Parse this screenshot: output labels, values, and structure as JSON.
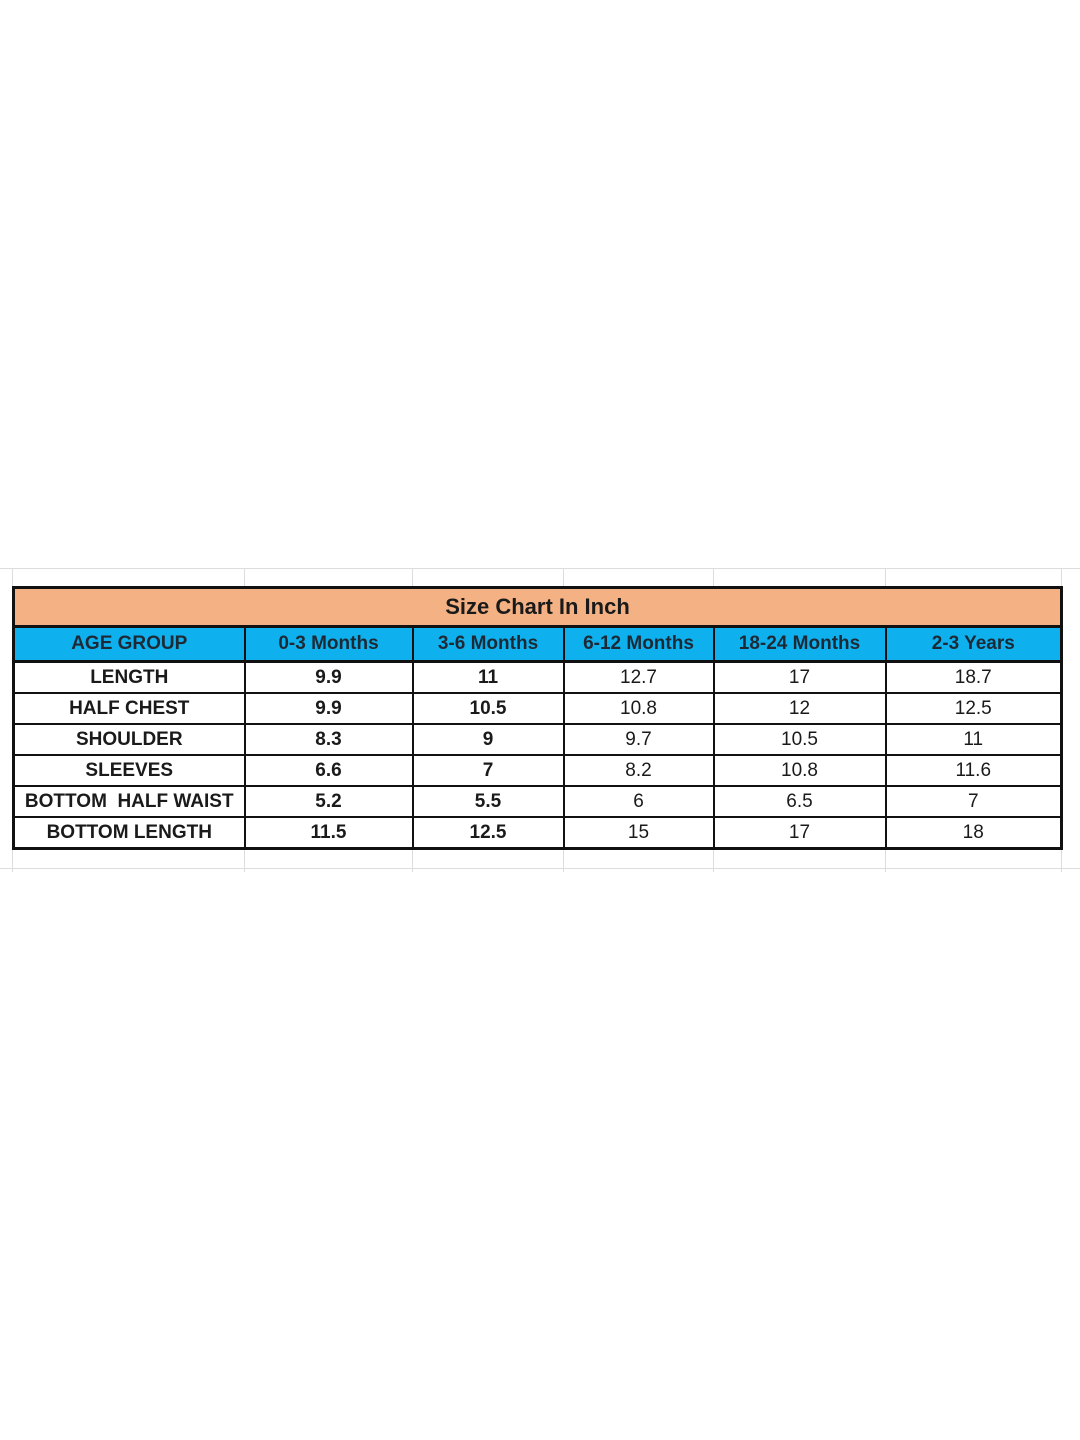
{
  "title": "Size Chart In Inch",
  "colors": {
    "title_bg": "#f4b183",
    "header_bg": "#0fb0ee"
  },
  "columns": [
    "AGE GROUP",
    "0-3 Months",
    "3-6 Months",
    "6-12 Months",
    "18-24 Months",
    "2-3 Years"
  ],
  "rows": [
    {
      "label": "LENGTH",
      "values": [
        "9.9",
        "11",
        "12.7",
        "17",
        "18.7"
      ]
    },
    {
      "label": "HALF CHEST",
      "values": [
        "9.9",
        "10.5",
        "10.8",
        "12",
        "12.5"
      ]
    },
    {
      "label": "SHOULDER",
      "values": [
        "8.3",
        "9",
        "9.7",
        "10.5",
        "11"
      ]
    },
    {
      "label": "SLEEVES",
      "values": [
        "6.6",
        "7",
        "8.2",
        "10.8",
        "11.6"
      ]
    },
    {
      "label": "BOTTOM  HALF WAIST",
      "values": [
        "5.2",
        "5.5",
        "6",
        "6.5",
        "7"
      ]
    },
    {
      "label": "BOTTOM LENGTH",
      "values": [
        "11.5",
        "12.5",
        "15",
        "17",
        "18"
      ]
    }
  ]
}
